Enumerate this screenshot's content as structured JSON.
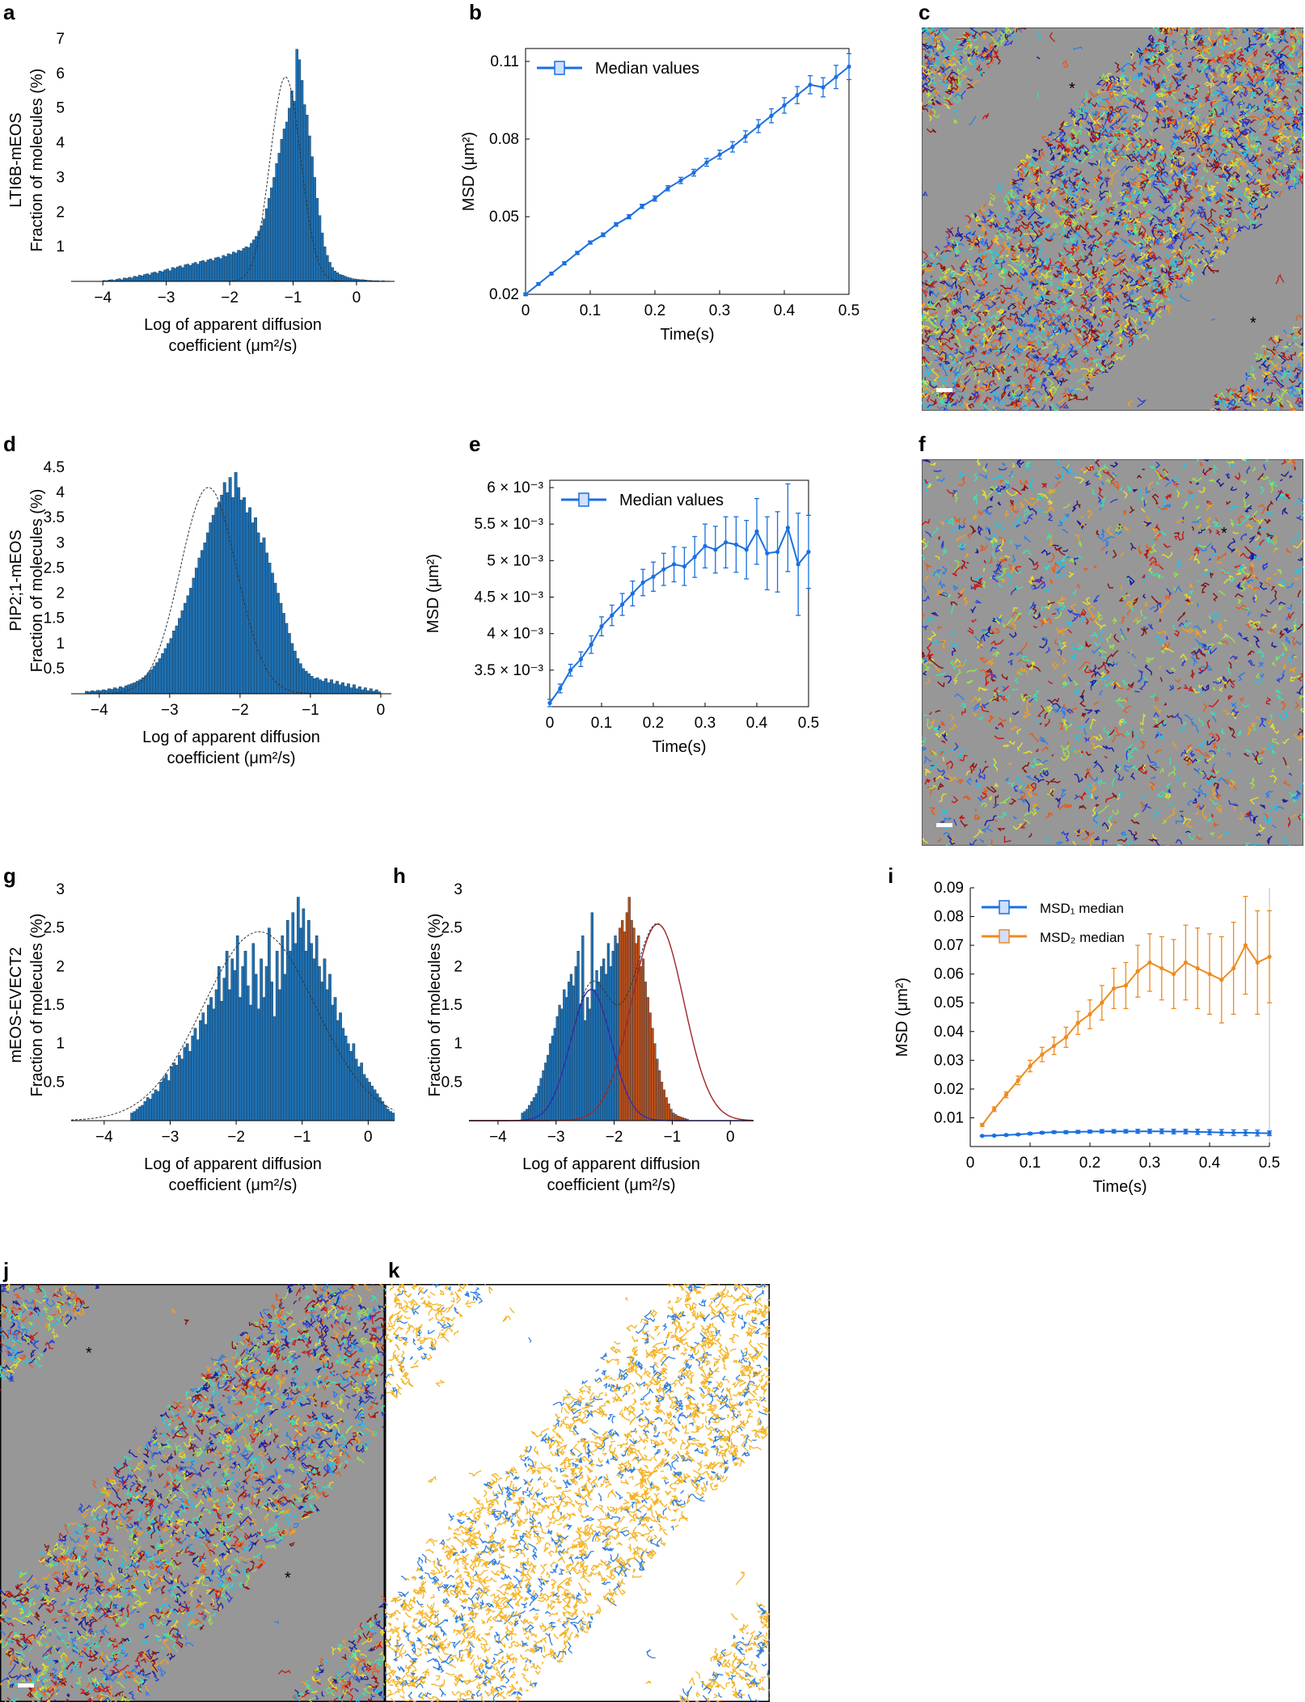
{
  "panels": {
    "a": "a",
    "b": "b",
    "c": "c",
    "d": "d",
    "e": "e",
    "f": "f",
    "g": "g",
    "h": "h",
    "i": "i",
    "j": "j",
    "k": "k"
  },
  "colors": {
    "hist_blue": "#1f6fb0",
    "hist_orange": "#b8501c",
    "msd_blue": "#1a6fe0",
    "msd_orange": "#f08a1c",
    "gray_bg": "#979797",
    "track_orange": "#f4b324",
    "track_blue": "#2f7fe0"
  },
  "chart_data": [
    {
      "id": "a",
      "type": "bar",
      "ylabel_line1": "LTI6B-mEOS",
      "ylabel_line2": "Fraction of molecules (%)",
      "xlabel_line1": "Log of apparent diffusion",
      "xlabel_line2": "coefficient (μm²/s)",
      "xlim": [
        -4.5,
        0.6
      ],
      "ylim": [
        0,
        7
      ],
      "xticks": [
        "−4",
        "−3",
        "−2",
        "−1",
        "0"
      ],
      "xtick_values": [
        -4,
        -3,
        -2,
        -1,
        0
      ],
      "yticks": [
        "1",
        "2",
        "3",
        "4",
        "5",
        "6",
        "7"
      ],
      "ytick_values": [
        1,
        2,
        3,
        4,
        5,
        6,
        7
      ],
      "fit": {
        "kind": "gaussian",
        "mu": -1.12,
        "sigma": 0.24,
        "amp": 5.9
      },
      "bins": {
        "start": -4.0,
        "width": 0.04
      },
      "values": [
        0.03,
        0.02,
        0.04,
        0.05,
        0.03,
        0.06,
        0.08,
        0.05,
        0.1,
        0.09,
        0.12,
        0.1,
        0.15,
        0.13,
        0.18,
        0.16,
        0.2,
        0.22,
        0.19,
        0.25,
        0.27,
        0.24,
        0.3,
        0.28,
        0.33,
        0.36,
        0.31,
        0.4,
        0.38,
        0.42,
        0.45,
        0.4,
        0.48,
        0.5,
        0.46,
        0.52,
        0.55,
        0.5,
        0.58,
        0.6,
        0.56,
        0.62,
        0.65,
        0.6,
        0.68,
        0.7,
        0.66,
        0.75,
        0.72,
        0.8,
        0.78,
        0.85,
        0.82,
        0.9,
        0.88,
        0.95,
        1.0,
        0.98,
        1.1,
        1.2,
        1.3,
        1.45,
        1.6,
        1.8,
        2.1,
        2.4,
        2.7,
        3.0,
        3.4,
        3.7,
        4.1,
        4.4,
        4.6,
        5.0,
        5.5,
        5.2,
        6.7,
        6.4,
        5.8,
        5.1,
        4.8,
        4.2,
        3.6,
        3.0,
        2.4,
        1.9,
        1.4,
        1.0,
        0.75,
        0.55,
        0.4,
        0.3,
        0.25,
        0.2,
        0.18,
        0.15,
        0.12,
        0.1,
        0.08,
        0.07,
        0.06,
        0.05,
        0.05,
        0.04,
        0.03,
        0.03,
        0.02,
        0.02,
        0.02,
        0.01,
        0.02,
        0.01,
        0.01
      ]
    },
    {
      "id": "b",
      "type": "line",
      "legend": "Median values",
      "ylabel": "MSD (μm²)",
      "xlabel": "Time(s)",
      "xlim": [
        0,
        0.5
      ],
      "ylim": [
        0.02,
        0.115
      ],
      "xticks": [
        "0",
        "0.1",
        "0.2",
        "0.3",
        "0.4",
        "0.5"
      ],
      "xtick_values": [
        0,
        0.1,
        0.2,
        0.3,
        0.4,
        0.5
      ],
      "yticks": [
        "0.02",
        "0.05",
        "0.08",
        "0.11"
      ],
      "ytick_values": [
        0.02,
        0.05,
        0.08,
        0.11
      ],
      "x": [
        0,
        0.02,
        0.04,
        0.06,
        0.08,
        0.1,
        0.12,
        0.14,
        0.16,
        0.18,
        0.2,
        0.22,
        0.24,
        0.26,
        0.28,
        0.3,
        0.32,
        0.34,
        0.36,
        0.38,
        0.4,
        0.42,
        0.44,
        0.46,
        0.48,
        0.5
      ],
      "y": [
        0.02,
        0.024,
        0.028,
        0.032,
        0.036,
        0.04,
        0.043,
        0.047,
        0.05,
        0.054,
        0.057,
        0.061,
        0.064,
        0.067,
        0.071,
        0.074,
        0.077,
        0.081,
        0.085,
        0.089,
        0.093,
        0.097,
        0.101,
        0.1,
        0.104,
        0.108
      ],
      "err": [
        0.0005,
        0.0005,
        0.0005,
        0.0006,
        0.0006,
        0.0006,
        0.0007,
        0.0007,
        0.0008,
        0.0008,
        0.001,
        0.001,
        0.0012,
        0.0013,
        0.0015,
        0.0017,
        0.002,
        0.0022,
        0.0025,
        0.0027,
        0.003,
        0.0033,
        0.0035,
        0.0037,
        0.0045,
        0.005
      ]
    },
    {
      "id": "d",
      "type": "bar",
      "ylabel_line1": "PIP2;1-mEOS",
      "ylabel_line2": "Fraction of molecules (%)",
      "xlabel_line1": "Log of apparent diffusion",
      "xlabel_line2": "coefficient (μm²/s)",
      "xlim": [
        -4.4,
        0.15
      ],
      "ylim": [
        0,
        4.5
      ],
      "xticks": [
        "−4",
        "−3",
        "−2",
        "−1",
        "0"
      ],
      "xtick_values": [
        -4,
        -3,
        -2,
        -1,
        0
      ],
      "yticks": [
        "0.5",
        "1",
        "1.5",
        "2",
        "2.5",
        "3",
        "3.5",
        "4",
        "4.5"
      ],
      "ytick_values": [
        0.5,
        1,
        1.5,
        2,
        2.5,
        3,
        3.5,
        4,
        4.5
      ],
      "fit": {
        "kind": "gaussian",
        "mu": -2.45,
        "sigma": 0.4,
        "amp": 4.1
      },
      "bins": {
        "start": -4.2,
        "width": 0.04
      },
      "values": [
        0.05,
        0.04,
        0.06,
        0.05,
        0.07,
        0.06,
        0.08,
        0.07,
        0.1,
        0.09,
        0.12,
        0.1,
        0.14,
        0.12,
        0.16,
        0.18,
        0.2,
        0.22,
        0.25,
        0.28,
        0.32,
        0.36,
        0.42,
        0.48,
        0.55,
        0.62,
        0.7,
        0.8,
        0.9,
        1.0,
        1.1,
        1.25,
        1.35,
        1.5,
        1.65,
        1.8,
        1.95,
        2.1,
        2.3,
        2.5,
        2.7,
        2.85,
        3.0,
        3.2,
        3.4,
        3.55,
        3.7,
        3.8,
        3.95,
        4.2,
        4.0,
        4.3,
        3.9,
        4.4,
        4.1,
        3.85,
        3.9,
        3.6,
        3.7,
        3.4,
        3.5,
        3.2,
        3.0,
        3.1,
        2.8,
        2.6,
        2.4,
        2.2,
        2.0,
        1.8,
        1.6,
        1.4,
        1.2,
        1.0,
        0.85,
        0.7,
        0.6,
        0.5,
        0.45,
        0.4,
        0.35,
        0.3,
        0.32,
        0.28,
        0.25,
        0.3,
        0.22,
        0.28,
        0.2,
        0.25,
        0.18,
        0.22,
        0.15,
        0.2,
        0.12,
        0.18,
        0.1,
        0.14,
        0.08,
        0.12,
        0.06,
        0.1,
        0.05,
        0.08,
        0.04
      ]
    },
    {
      "id": "e",
      "type": "line",
      "legend": "Median values",
      "ylabel": "MSD (μm²)",
      "xlabel": "Time(s)",
      "xlim": [
        0,
        0.5
      ],
      "ylim": [
        0.003,
        0.0061
      ],
      "xticks": [
        "0",
        "0.1",
        "0.2",
        "0.3",
        "0.4",
        "0.5"
      ],
      "xtick_values": [
        0,
        0.1,
        0.2,
        0.3,
        0.4,
        0.5
      ],
      "yticks": [
        "3.5 × 10⁻³",
        "4 × 10⁻³",
        "4.5 × 10⁻³",
        "5 × 10⁻³",
        "5.5 × 10⁻³",
        "6 × 10⁻³"
      ],
      "ytick_values": [
        0.0035,
        0.004,
        0.0045,
        0.005,
        0.0055,
        0.006
      ],
      "x": [
        0,
        0.02,
        0.04,
        0.06,
        0.08,
        0.1,
        0.12,
        0.14,
        0.16,
        0.18,
        0.2,
        0.22,
        0.24,
        0.26,
        0.28,
        0.3,
        0.32,
        0.34,
        0.36,
        0.38,
        0.4,
        0.42,
        0.44,
        0.46,
        0.48,
        0.5
      ],
      "y": [
        0.00305,
        0.00325,
        0.0035,
        0.00365,
        0.00385,
        0.0041,
        0.00425,
        0.0044,
        0.00455,
        0.0047,
        0.00478,
        0.00488,
        0.00495,
        0.00492,
        0.00505,
        0.0052,
        0.00515,
        0.00525,
        0.00522,
        0.00515,
        0.0054,
        0.0051,
        0.00512,
        0.00545,
        0.00495,
        0.00512
      ],
      "err": [
        5e-05,
        6e-05,
        8e-05,
        0.0001,
        0.00012,
        0.00013,
        0.00014,
        0.00015,
        0.00017,
        0.00018,
        0.0002,
        0.00022,
        0.00024,
        0.00026,
        0.00028,
        0.0003,
        0.00032,
        0.00035,
        0.00038,
        0.0004,
        0.00045,
        0.0005,
        0.00055,
        0.0006,
        0.0007,
        0.0005
      ]
    },
    {
      "id": "g",
      "type": "bar",
      "ylabel_line1": "mEOS-EVECT2",
      "ylabel_line2": "Fraction of molecules (%)",
      "xlabel_line1": "Log of apparent diffusion",
      "xlabel_line2": "coefficient (μm²/s)",
      "xlim": [
        -4.5,
        0.4
      ],
      "ylim": [
        0,
        3
      ],
      "xticks": [
        "−4",
        "−3",
        "−2",
        "−1",
        "0"
      ],
      "xtick_values": [
        -4,
        -3,
        -2,
        -1,
        0
      ],
      "yticks": [
        "0.5",
        "1",
        "1.5",
        "2",
        "2.5",
        "3"
      ],
      "ytick_values": [
        0.5,
        1,
        1.5,
        2,
        2.5,
        3
      ],
      "fit": {
        "kind": "gaussian",
        "mu": -1.65,
        "sigma": 0.85,
        "amp": 2.45
      },
      "bins": {
        "start": -3.6,
        "width": 0.04
      },
      "values": [
        0.1,
        0.12,
        0.15,
        0.18,
        0.2,
        0.25,
        0.3,
        0.28,
        0.35,
        0.4,
        0.38,
        0.5,
        0.55,
        0.6,
        0.52,
        0.7,
        0.75,
        0.72,
        0.85,
        0.8,
        0.95,
        1.0,
        0.9,
        1.1,
        1.2,
        1.05,
        1.3,
        1.4,
        1.25,
        1.5,
        1.6,
        1.45,
        1.7,
        2.0,
        1.55,
        1.85,
        2.2,
        1.7,
        2.1,
        1.95,
        2.4,
        1.6,
        2.0,
        2.2,
        1.75,
        1.5,
        2.3,
        1.9,
        1.45,
        2.1,
        1.6,
        2.0,
        2.5,
        1.8,
        1.35,
        2.2,
        1.7,
        2.4,
        1.9,
        2.6,
        2.2,
        2.7,
        2.3,
        2.9,
        2.5,
        2.75,
        2.2,
        2.6,
        2.3,
        2.1,
        2.4,
        2.0,
        1.8,
        2.1,
        1.7,
        1.9,
        1.5,
        1.6,
        1.3,
        1.4,
        1.2,
        1.1,
        1.0,
        0.9,
        1.0,
        0.8,
        0.7,
        0.75,
        0.6,
        0.55,
        0.5,
        0.45,
        0.4,
        0.35,
        0.3,
        0.25,
        0.2,
        0.15,
        0.12,
        0.1
      ]
    },
    {
      "id": "h",
      "type": "bar",
      "ylabel_line1": "Fraction of molecules (%)",
      "xlabel_line1": "Log of apparent diffusion",
      "xlabel_line2": "coefficient (μm²/s)",
      "xlim": [
        -4.5,
        0.4
      ],
      "ylim": [
        0,
        3
      ],
      "xticks": [
        "−4",
        "−3",
        "−2",
        "−1",
        "0"
      ],
      "xtick_values": [
        -4,
        -3,
        -2,
        -1,
        0
      ],
      "yticks": [
        "0.5",
        "1",
        "1.5",
        "2",
        "2.5",
        "3"
      ],
      "ytick_values": [
        0.5,
        1,
        1.5,
        2,
        2.5,
        3
      ],
      "split_at": -1.95,
      "fit": {
        "kind": "double_gaussian",
        "mu1": -2.4,
        "sigma1": 0.35,
        "amp1": 1.7,
        "mu2": -1.25,
        "sigma2": 0.45,
        "amp2": 2.55,
        "sum_amp": 1.9
      },
      "bins": {
        "start": -3.6,
        "width": 0.04
      },
      "values": [
        0.1,
        0.12,
        0.15,
        0.2,
        0.25,
        0.3,
        0.35,
        0.45,
        0.55,
        0.65,
        0.75,
        0.85,
        1.0,
        1.1,
        1.2,
        1.35,
        1.5,
        1.45,
        1.7,
        1.6,
        1.8,
        1.9,
        1.75,
        2.0,
        2.2,
        1.5,
        2.4,
        1.3,
        1.6,
        1.45,
        2.7,
        1.7,
        1.95,
        1.8,
        2.0,
        2.1,
        1.9,
        2.3,
        2.0,
        2.2,
        2.4,
        2.3,
        2.5,
        2.6,
        2.45,
        2.7,
        2.9,
        2.6,
        2.5,
        2.3,
        2.4,
        2.0,
        2.1,
        1.8,
        1.6,
        1.4,
        1.2,
        1.0,
        0.8,
        0.65,
        0.5,
        0.4,
        0.3,
        0.22,
        0.15,
        0.1,
        0.08,
        0.06,
        0.05,
        0.04,
        0.03,
        0.02
      ]
    },
    {
      "id": "i",
      "type": "line",
      "ylabel": "MSD (μm²)",
      "xlabel": "Time(s)",
      "xlim": [
        0,
        0.5
      ],
      "ylim": [
        0,
        0.09
      ],
      "xticks": [
        "0",
        "0.1",
        "0.2",
        "0.3",
        "0.4",
        "0.5"
      ],
      "xtick_values": [
        0,
        0.1,
        0.2,
        0.3,
        0.4,
        0.5
      ],
      "yticks": [
        "0.01",
        "0.02",
        "0.03",
        "0.04",
        "0.05",
        "0.06",
        "0.07",
        "0.08",
        "0.09"
      ],
      "ytick_values": [
        0.01,
        0.02,
        0.03,
        0.04,
        0.05,
        0.06,
        0.07,
        0.08,
        0.09
      ],
      "series": [
        {
          "name": "MSD₁ median",
          "color": "#1a6fe0",
          "x": [
            0.02,
            0.04,
            0.06,
            0.08,
            0.1,
            0.12,
            0.14,
            0.16,
            0.18,
            0.2,
            0.22,
            0.24,
            0.26,
            0.28,
            0.3,
            0.32,
            0.34,
            0.36,
            0.38,
            0.4,
            0.42,
            0.44,
            0.46,
            0.48,
            0.5
          ],
          "y": [
            0.0037,
            0.0038,
            0.004,
            0.0042,
            0.0045,
            0.0048,
            0.005,
            0.005,
            0.0051,
            0.0052,
            0.0053,
            0.0053,
            0.0053,
            0.0053,
            0.0053,
            0.0053,
            0.0052,
            0.0052,
            0.0051,
            0.005,
            0.0049,
            0.0048,
            0.0048,
            0.0047,
            0.0046
          ],
          "err": [
            0.0002,
            0.0002,
            0.0003,
            0.0003,
            0.0004,
            0.0004,
            0.0004,
            0.0005,
            0.0005,
            0.0005,
            0.0006,
            0.0006,
            0.0006,
            0.0007,
            0.0007,
            0.0008,
            0.0008,
            0.0008,
            0.0009,
            0.0009,
            0.001,
            0.001,
            0.001,
            0.001,
            0.0008
          ]
        },
        {
          "name": "MSD₂ median",
          "color": "#f08a1c",
          "x": [
            0.02,
            0.04,
            0.06,
            0.08,
            0.1,
            0.12,
            0.14,
            0.16,
            0.18,
            0.2,
            0.22,
            0.24,
            0.26,
            0.28,
            0.3,
            0.32,
            0.34,
            0.36,
            0.38,
            0.4,
            0.42,
            0.44,
            0.46,
            0.48,
            0.5
          ],
          "y": [
            0.0075,
            0.013,
            0.018,
            0.023,
            0.028,
            0.032,
            0.035,
            0.038,
            0.043,
            0.046,
            0.05,
            0.055,
            0.056,
            0.061,
            0.064,
            0.062,
            0.06,
            0.064,
            0.062,
            0.06,
            0.058,
            0.062,
            0.07,
            0.064,
            0.066
          ],
          "err": [
            0.0005,
            0.0008,
            0.001,
            0.0015,
            0.002,
            0.0025,
            0.003,
            0.0035,
            0.004,
            0.005,
            0.006,
            0.007,
            0.008,
            0.009,
            0.01,
            0.011,
            0.012,
            0.013,
            0.014,
            0.014,
            0.015,
            0.016,
            0.017,
            0.018,
            0.016
          ]
        }
      ]
    }
  ]
}
